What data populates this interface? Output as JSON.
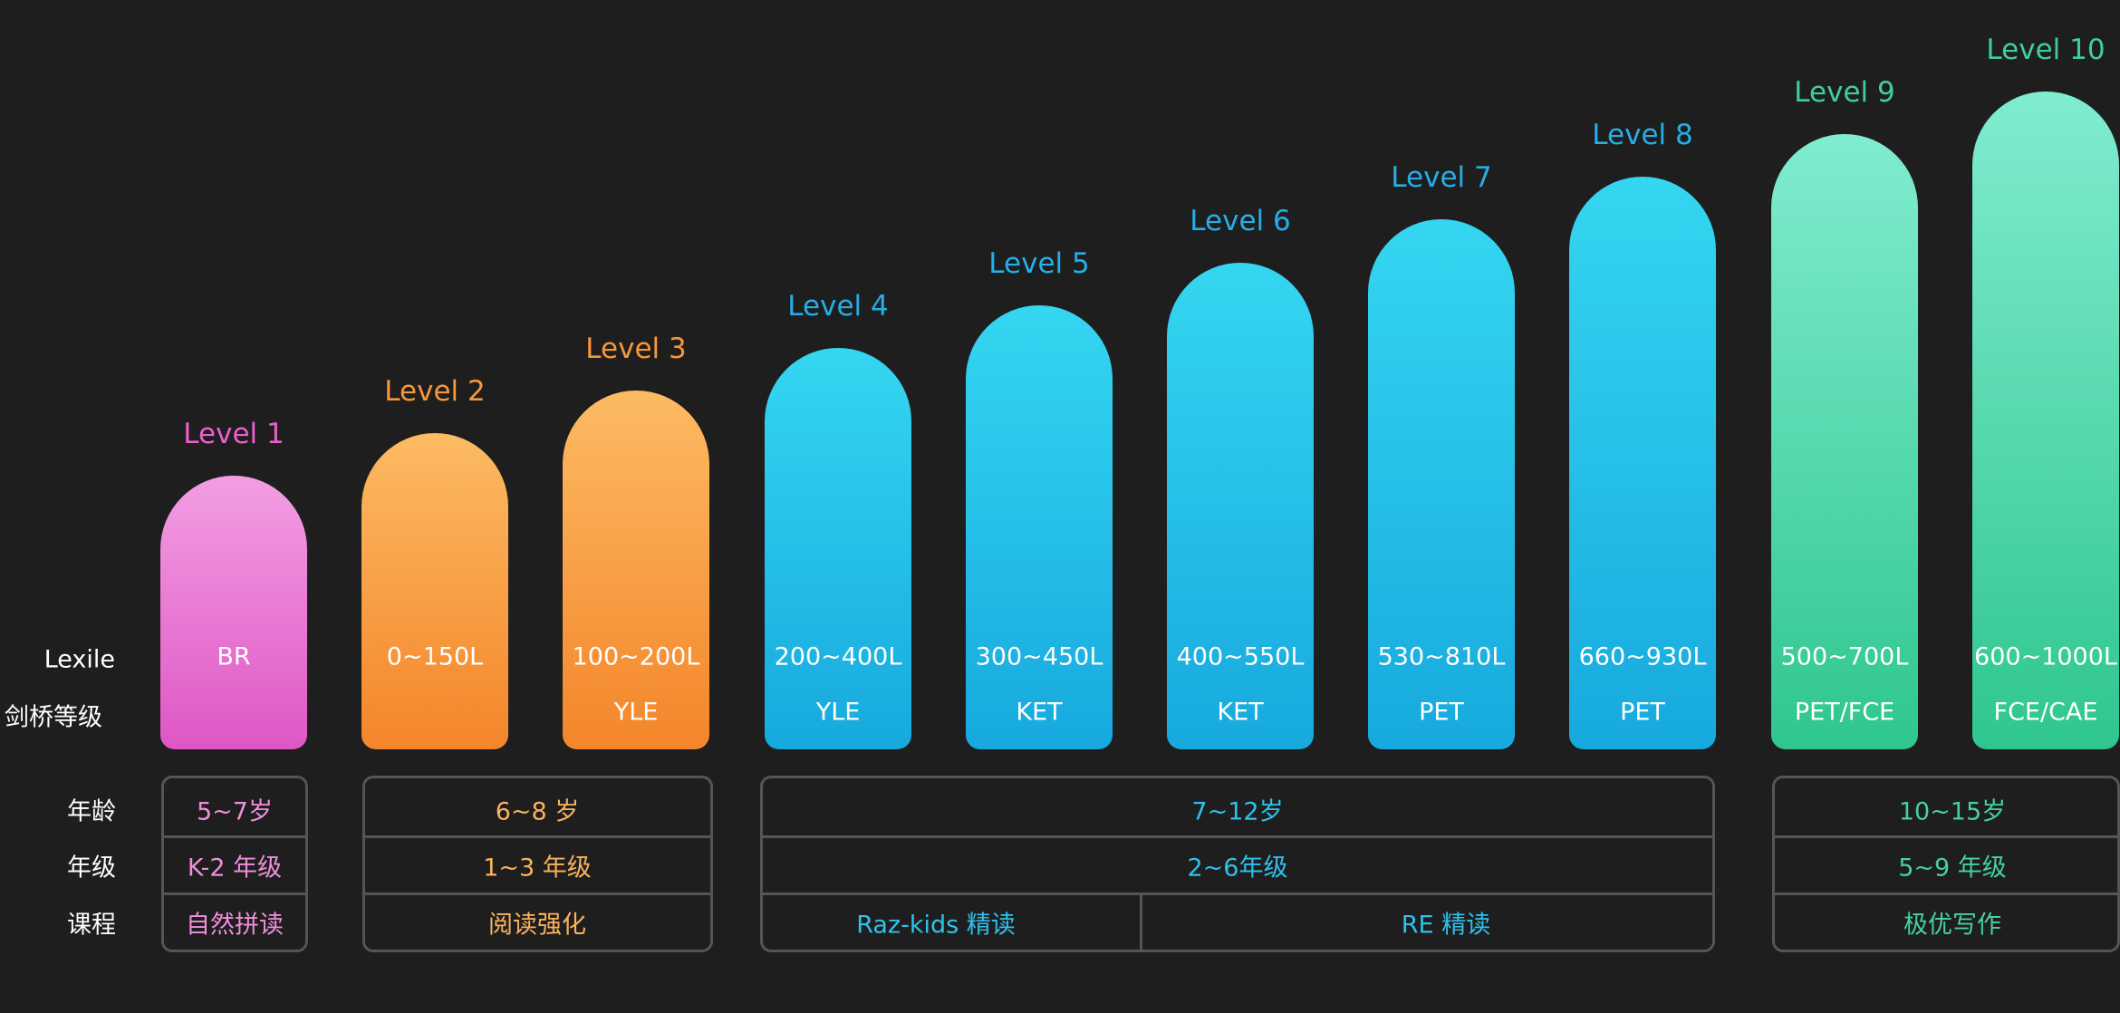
{
  "chart_data": {
    "type": "bar",
    "categories": [
      "Level 1",
      "Level 2",
      "Level 3",
      "Level 4",
      "Level 5",
      "Level 6",
      "Level 7",
      "Level 8",
      "Level 9",
      "Level 10"
    ],
    "values": [
      1,
      2,
      3,
      4,
      5,
      6,
      7,
      8,
      9,
      10
    ],
    "row_labels": [
      "Lexile",
      "剑桥等级"
    ],
    "lexile": [
      "BR",
      "0~150L",
      "100~200L",
      "200~400L",
      "300~450L",
      "400~550L",
      "530~810L",
      "660~930L",
      "500~700L",
      "600~1000L"
    ],
    "cambridge": [
      "",
      "",
      "YLE",
      "YLE",
      "KET",
      "KET",
      "PET",
      "PET",
      "PET/FCE",
      "FCE/CAE"
    ],
    "groups": [
      "pink",
      "orange",
      "orange",
      "blue",
      "blue",
      "blue",
      "blue",
      "blue",
      "green",
      "green"
    ]
  },
  "colors": {
    "pink": "#e35fc8",
    "orange": "#f58c33",
    "blue": "#27b7ea",
    "green": "#3dcb96"
  },
  "table": {
    "row_labels": [
      "年龄",
      "年级",
      "课程"
    ],
    "groups": [
      {
        "color": "pink",
        "age": "5~7岁",
        "grade": "K-2 年级",
        "courses": [
          "自然拼读"
        ]
      },
      {
        "color": "orange",
        "age": "6~8 岁",
        "grade": "1~3 年级",
        "courses": [
          "阅读强化"
        ]
      },
      {
        "color": "blue",
        "age": "7~12岁",
        "grade": "2~6年级",
        "courses": [
          "Raz-kids 精读",
          "RE 精读"
        ]
      },
      {
        "color": "green",
        "age": "10~15岁",
        "grade": "5~9 年级",
        "courses": [
          "极优写作"
        ]
      }
    ]
  }
}
